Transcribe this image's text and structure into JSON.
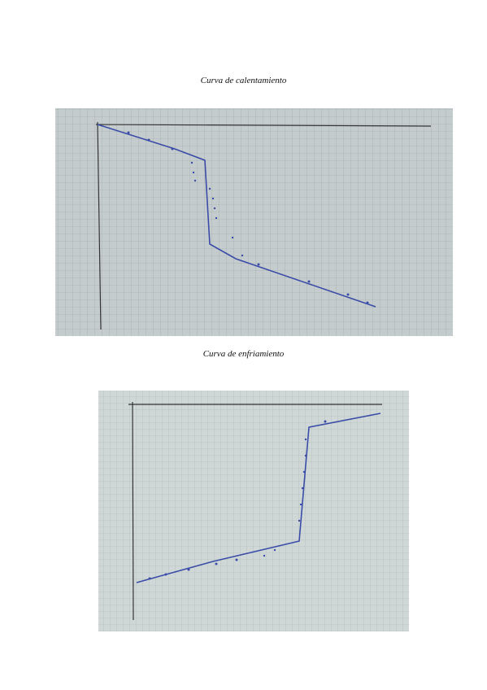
{
  "document": {
    "figures": [
      {
        "caption": "Curva de calentamiento"
      },
      {
        "caption": "Curva de enfriamiento"
      }
    ]
  }
}
